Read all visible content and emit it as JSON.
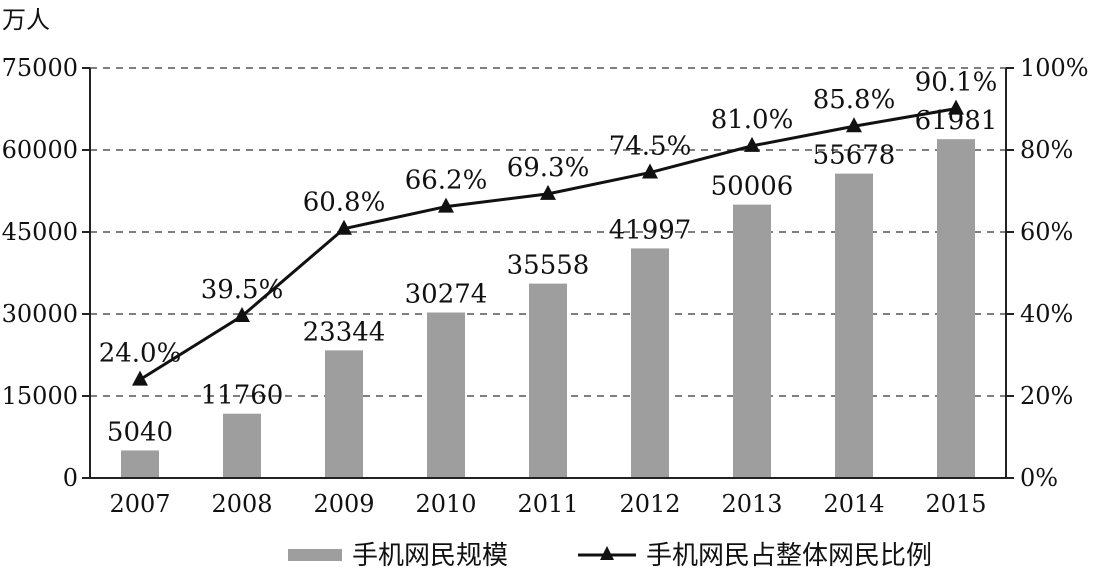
{
  "chart_data": {
    "type": "bar",
    "y_unit_label": "万人",
    "categories": [
      "2007",
      "2008",
      "2009",
      "2010",
      "2011",
      "2012",
      "2013",
      "2014",
      "2015"
    ],
    "series": [
      {
        "name": "手机网民规模",
        "type": "bar",
        "axis": "left",
        "color": "#9e9e9e",
        "values": [
          5040,
          11760,
          23344,
          30274,
          35558,
          41997,
          50006,
          55678,
          61981
        ],
        "labels": [
          "5040",
          "11760",
          "23344",
          "30274",
          "35558",
          "41997",
          "50006",
          "55678",
          "61981"
        ]
      },
      {
        "name": "手机网民占整体网民比例",
        "type": "line",
        "axis": "right",
        "color": "#111111",
        "marker": "triangle",
        "values": [
          24.0,
          39.5,
          60.8,
          66.2,
          69.3,
          74.5,
          81.0,
          85.8,
          90.1
        ],
        "labels": [
          "24.0%",
          "39.5%",
          "60.8%",
          "66.2%",
          "69.3%",
          "74.5%",
          "81.0%",
          "85.8%",
          "90.1%"
        ]
      }
    ],
    "y_left": {
      "min": 0,
      "max": 75000,
      "ticks": [
        "0",
        "15000",
        "30000",
        "45000",
        "60000",
        "75000"
      ]
    },
    "y_right": {
      "min": 0,
      "max": 100,
      "ticks": [
        "0%",
        "20%",
        "40%",
        "60%",
        "80%",
        "100%"
      ]
    },
    "grid": "horizontal-dashed",
    "legend_position": "bottom-center"
  }
}
